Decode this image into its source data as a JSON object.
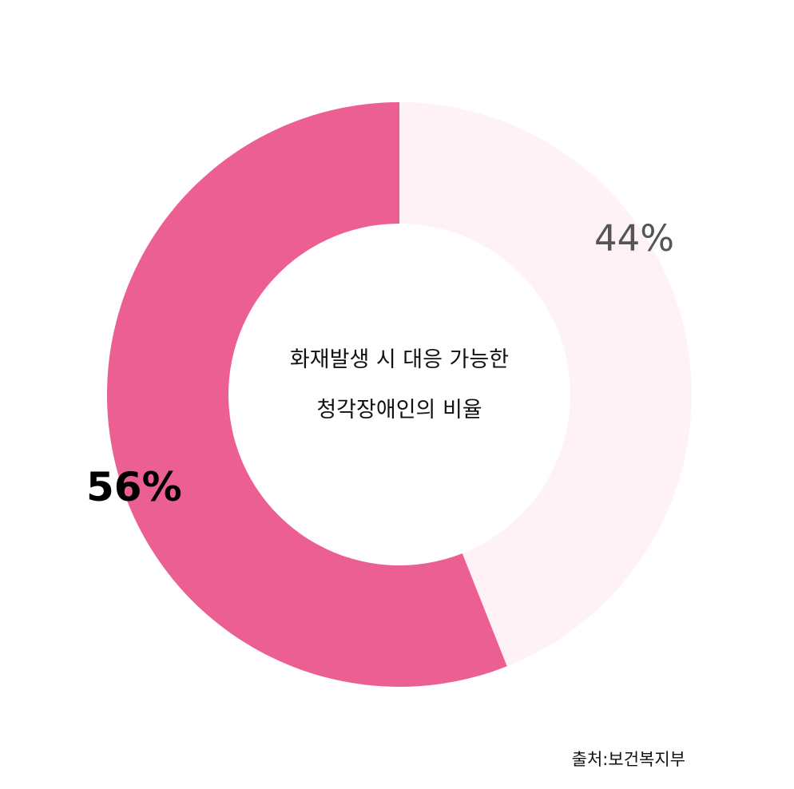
{
  "chart_data": {
    "type": "pie",
    "donut": true,
    "title_lines": [
      "화재발생 시 대응 가능한",
      "청각장애인의 비율"
    ],
    "slices": [
      {
        "label": "44%",
        "value": 44,
        "color": "#fff2f6",
        "label_color": "#555555"
      },
      {
        "label": "56%",
        "value": 56,
        "color": "#ec5f92",
        "label_color": "#000000"
      }
    ],
    "start_angle_deg": 0,
    "direction": "clockwise"
  },
  "source": "출처:보건복지부"
}
